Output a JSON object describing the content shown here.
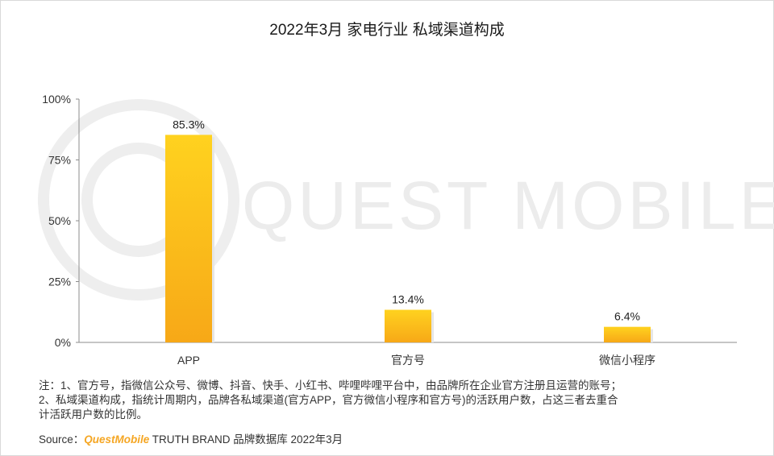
{
  "chart_data": {
    "type": "bar",
    "title": "2022年3月 家电行业 私域渠道构成",
    "categories": [
      "APP",
      "官方号",
      "微信小程序"
    ],
    "values": [
      85.3,
      13.4,
      6.4
    ],
    "value_labels": [
      "85.3%",
      "13.4%",
      "6.4%"
    ],
    "yticks": [
      {
        "value": 0,
        "label": "0%"
      },
      {
        "value": 25,
        "label": "25%"
      },
      {
        "value": 50,
        "label": "50%"
      },
      {
        "value": 75,
        "label": "75%"
      },
      {
        "value": 100,
        "label": "100%"
      }
    ],
    "ylim": [
      0,
      100
    ],
    "grid": false,
    "bar_color_top": "#ffd21f",
    "bar_color_bottom": "#f7a817"
  },
  "watermark": "QUEST MOBILE",
  "notes": [
    "注：1、官方号，指微信公众号、微博、抖音、快手、小红书、哔哩哔哩平台中，由品牌所在企业官方注册且运营的账号；",
    "2、私域渠道构成，指统计周期内，品牌各私域渠道(官方APP，官方微信小程序和官方号)的活跃用户数，占这三者去重合",
    "计活跃用户数的比例。"
  ],
  "source": {
    "prefix": "Source：",
    "brand": "QuestMobile",
    "rest": " TRUTH BRAND 品牌数据库 2022年3月"
  }
}
